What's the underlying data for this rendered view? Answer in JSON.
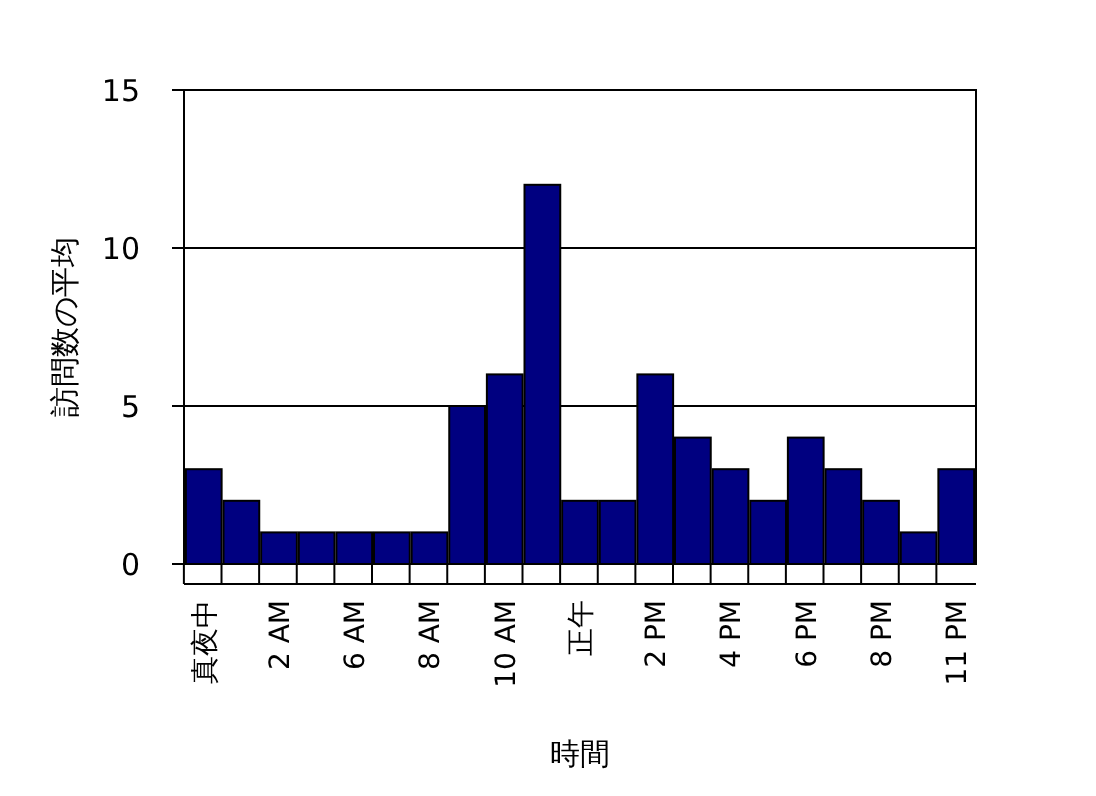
{
  "chart_data": {
    "type": "bar",
    "xlabel": "時間",
    "ylabel": "訪問数の平均",
    "categories": [
      "真夜中",
      null,
      "2 AM",
      null,
      "6 AM",
      null,
      "8 AM",
      null,
      "10 AM",
      null,
      "正午",
      null,
      "2 PM",
      null,
      "4 PM",
      null,
      "6 PM",
      null,
      "8 PM",
      null,
      "11 PM"
    ],
    "values": [
      3,
      2,
      1,
      1,
      1,
      1,
      1,
      5,
      6,
      12,
      2,
      2,
      6,
      4,
      3,
      2,
      4,
      3,
      2,
      1,
      3
    ],
    "color": "#000080",
    "ylim": [
      0,
      15
    ],
    "yticks": [
      0,
      5,
      10,
      15
    ],
    "grid": "y"
  }
}
